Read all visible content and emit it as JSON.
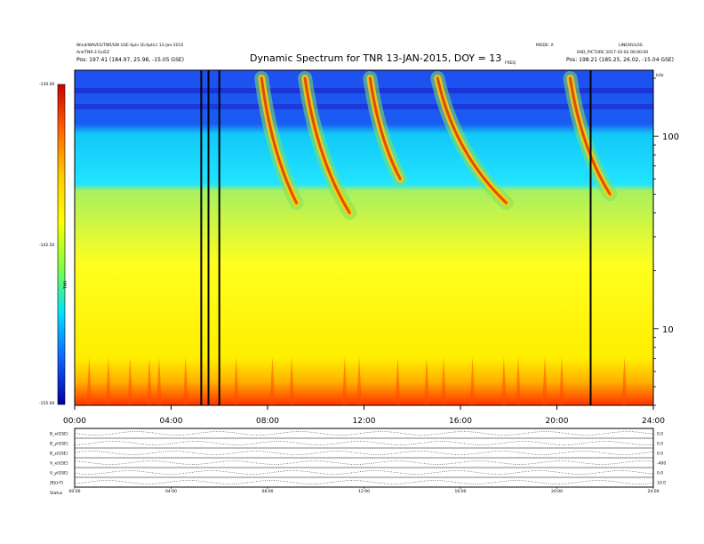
{
  "header": {
    "title": "Dynamic Spectrum for TNR 13-JAN-2015, DOY = 13",
    "left_line1": "Wind/WAVES/TNR/SW GSE-Spin (Ecliptic) 13-Jan-2015",
    "left_line2": "Ant/TNR-3 Ex/EZ",
    "left_pos": "Pos:  197.41 (184.97, 25.98, -15.05 GSE)",
    "mid_small": "FREQ",
    "right_top_a": "MODE: A",
    "right_top_b": "LINEAR/LOG",
    "right_line2": "RAD_PICTURE  2017-10-02  00:00:00",
    "right_pos": "Pos:  198.21 (185.25, 26.02, -15.04 GSE)",
    "right_unit": "kHz"
  },
  "colorbar": {
    "label": "TNR",
    "ticks": [
      "-130.00",
      "-142.50",
      "-155.00"
    ],
    "colors": [
      "#cc0000",
      "#ff6600",
      "#ffcc00",
      "#ffff00",
      "#80ff40",
      "#00e0ff",
      "#1060ff",
      "#0000a0"
    ]
  },
  "chart_data": {
    "type": "heatmap",
    "title": "Dynamic Spectrum for TNR 13-JAN-2015, DOY = 13",
    "x_ticks": [
      "00:00",
      "04:00",
      "08:00",
      "12:00",
      "16:00",
      "20:00",
      "24:00"
    ],
    "x_range_hours": [
      0,
      24
    ],
    "y_scale": "log",
    "y_ticks": [
      100,
      10
    ],
    "y_range_khz": [
      4,
      220
    ],
    "colorbar_range": [
      -155.0,
      -130.0
    ],
    "data_gaps_hours": [
      5.25,
      5.55,
      6.0,
      21.4
    ],
    "radio_bursts": [
      {
        "start_h": 7.9,
        "start_khz": 200,
        "end_h": 9.2,
        "end_khz": 45
      },
      {
        "start_h": 9.7,
        "start_khz": 200,
        "end_h": 11.4,
        "end_khz": 40
      },
      {
        "start_h": 12.4,
        "start_khz": 200,
        "end_h": 13.5,
        "end_khz": 60
      },
      {
        "start_h": 15.2,
        "start_khz": 200,
        "end_h": 17.9,
        "end_khz": 45
      },
      {
        "start_h": 20.7,
        "start_khz": 200,
        "end_h": 22.2,
        "end_khz": 50
      }
    ]
  },
  "bottom_panel": {
    "rows": [
      {
        "label": "B_x(GSE)",
        "right": "0.0"
      },
      {
        "label": "B_y(GSE)",
        "right": "0.0"
      },
      {
        "label": "B_z(GSE)",
        "right": "0.0"
      },
      {
        "label": "V_x(GSE)",
        "right": "-400"
      },
      {
        "label": "V_y(GSE)",
        "right": "0.0"
      },
      {
        "label": "|B|(nT)",
        "right": "10.0"
      }
    ],
    "x_ticks": [
      "00:00",
      "04:00",
      "08:00",
      "12:00",
      "16:00",
      "20:00",
      "24:00"
    ],
    "footer_label": "Status"
  }
}
